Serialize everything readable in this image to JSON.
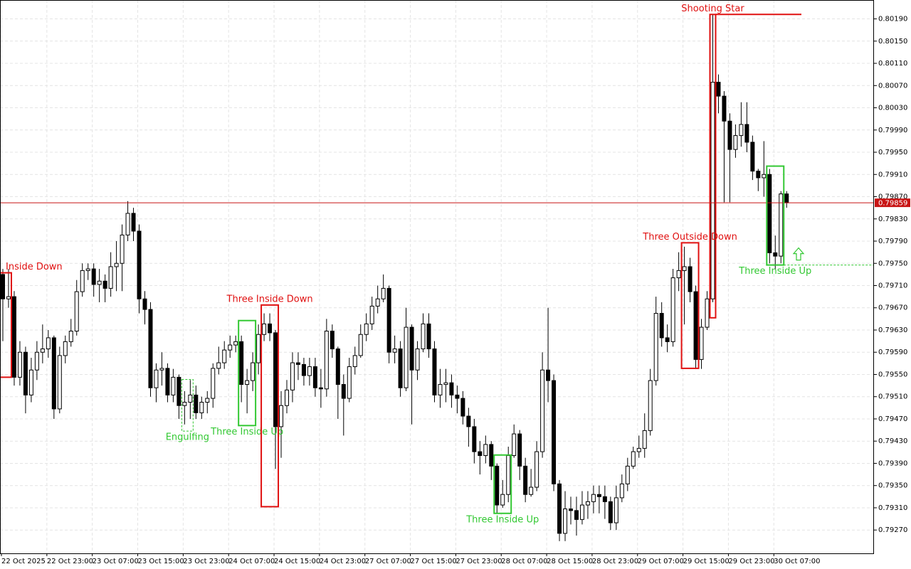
{
  "chart_data": {
    "type": "candlestick",
    "categories": [
      "22 Oct 2025",
      null,
      null,
      null,
      null,
      null,
      null,
      null,
      "22 Oct 23:00",
      null,
      null,
      null,
      null,
      null,
      null,
      null,
      "23 Oct 07:00",
      null,
      null,
      null,
      null,
      null,
      null,
      null,
      "23 Oct 15:00",
      null,
      null,
      null,
      null,
      null,
      null,
      null,
      "23 Oct 23:00",
      null,
      null,
      null,
      null,
      null,
      null,
      null,
      "24 Oct 07:00",
      null,
      null,
      null,
      null,
      null,
      null,
      null,
      "24 Oct 15:00",
      null,
      null,
      null,
      null,
      null,
      null,
      null,
      "24 Oct 23:00",
      null,
      null,
      null,
      null,
      null,
      null,
      null,
      "27 Oct 07:00",
      null,
      null,
      null,
      null,
      null,
      null,
      null,
      "27 Oct 15:00",
      null,
      null,
      null,
      null,
      null,
      null,
      null,
      "27 Oct 23:00",
      null,
      null,
      null,
      null,
      null,
      null,
      null,
      "28 Oct 07:00",
      null,
      null,
      null,
      null,
      null,
      null,
      null,
      "28 Oct 15:00",
      null,
      null,
      null,
      null,
      null,
      null,
      null,
      "28 Oct 23:00",
      null,
      null,
      null,
      null,
      null,
      null,
      null,
      "29 Oct 07:00",
      null,
      null,
      null,
      null,
      null,
      null,
      null,
      "29 Oct 15:00",
      null,
      null,
      null,
      null,
      null,
      null,
      null,
      "29 Oct 23:00",
      null,
      null,
      null,
      null,
      null,
      null,
      null,
      "30 Oct 07:00",
      null,
      null
    ],
    "open": [
      0.7973,
      0.79686,
      0.7969,
      0.79545,
      0.7959,
      0.79513,
      0.79558,
      0.7959,
      0.79596,
      0.79616,
      0.79488,
      0.79584,
      0.79609,
      0.79628,
      0.79699,
      0.79737,
      0.7974,
      0.79712,
      0.79718,
      0.79705,
      0.79744,
      0.7975,
      0.79801,
      0.7984,
      0.79808,
      0.79686,
      0.79667,
      0.79526,
      0.79558,
      0.79561,
      0.79513,
      0.79545,
      0.79494,
      0.795,
      0.79513,
      0.79481,
      0.795,
      0.79507,
      0.79561,
      0.79571,
      0.79594,
      0.79603,
      0.79609,
      0.79532,
      0.79539,
      0.79571,
      0.79622,
      0.79641,
      0.79625,
      0.79456,
      0.79494,
      0.79522,
      0.79571,
      0.79568,
      0.79548,
      0.79564,
      0.79526,
      0.79524,
      0.79628,
      0.79596,
      0.79532,
      0.79507,
      0.79564,
      0.79584,
      0.79622,
      0.79641,
      0.79673,
      0.79686,
      0.79705,
      0.7959,
      0.79596,
      0.79526,
      0.79635,
      0.79558,
      0.79596,
      0.79641,
      0.79596,
      0.79513,
      0.79532,
      0.79535,
      0.79513,
      0.79507,
      0.79475,
      0.79456,
      0.79411,
      0.79404,
      0.79424,
      0.79385,
      0.79315,
      0.79334,
      0.79404,
      0.79443,
      0.79385,
      0.79334,
      0.79347,
      0.79411,
      0.79558,
      0.79539,
      0.79353,
      0.79264,
      0.79308,
      0.79305,
      0.79289,
      0.79315,
      0.79321,
      0.79334,
      0.7933,
      0.79321,
      0.79283,
      0.79328,
      0.79353,
      0.79385,
      0.79411,
      0.79417,
      0.79449,
      0.79539,
      0.7966,
      0.79616,
      0.79609,
      0.79724,
      0.79737,
      0.79744,
      0.79699,
      0.79577,
      0.79635,
      0.79686,
      0.80076,
      0.80051,
      0.80006,
      0.79955,
      0.7998,
      0.8,
      0.79968,
      0.79916,
      0.79904,
      0.7991,
      0.79769,
      0.79763,
      0.79875
    ],
    "high": [
      0.7974,
      0.7974,
      0.797,
      0.7961,
      0.796,
      0.7958,
      0.7961,
      0.7964,
      0.7963,
      0.7962,
      0.796,
      0.7962,
      0.7965,
      0.7972,
      0.7975,
      0.7975,
      0.7975,
      0.7974,
      0.7973,
      0.7977,
      0.7979,
      0.7982,
      0.79862,
      0.7985,
      0.7982,
      0.797,
      0.7968,
      0.7957,
      0.7959,
      0.7957,
      0.7956,
      0.7955,
      0.7952,
      0.7954,
      0.7953,
      0.7951,
      0.7952,
      0.7957,
      0.796,
      0.7961,
      0.7962,
      0.7962,
      0.7962,
      0.7956,
      0.7959,
      0.7964,
      0.7966,
      0.7966,
      0.7963,
      0.7952,
      0.7954,
      0.7959,
      0.7959,
      0.7958,
      0.7958,
      0.7958,
      0.7956,
      0.7965,
      0.7964,
      0.796,
      0.7955,
      0.7958,
      0.796,
      0.7964,
      0.7966,
      0.7969,
      0.7971,
      0.7973,
      0.7971,
      0.7962,
      0.7961,
      0.7967,
      0.7964,
      0.7961,
      0.7966,
      0.7966,
      0.7961,
      0.7956,
      0.7956,
      0.7955,
      0.7953,
      0.7952,
      0.7949,
      0.7947,
      0.7943,
      0.7944,
      0.7943,
      0.7939,
      0.7936,
      0.7942,
      0.7946,
      0.7945,
      0.794,
      0.7938,
      0.7943,
      0.7959,
      0.7967,
      0.7955,
      0.7936,
      0.7934,
      0.7933,
      0.7933,
      0.7934,
      0.7934,
      0.7935,
      0.7935,
      0.7935,
      0.7933,
      0.7935,
      0.7937,
      0.794,
      0.7942,
      0.7944,
      0.7948,
      0.7956,
      0.7969,
      0.7968,
      0.7964,
      0.7974,
      0.7977,
      0.7978,
      0.7976,
      0.7971,
      0.7965,
      0.797,
      0.80198,
      0.8009,
      0.8006,
      0.8002,
      0.8,
      0.8004,
      0.8004,
      0.7998,
      0.7992,
      0.7997,
      0.7992,
      0.798,
      0.7988,
      0.7988
    ],
    "low": [
      0.7961,
      0.7967,
      0.7953,
      0.7953,
      0.7948,
      0.795,
      0.7954,
      0.7957,
      0.7958,
      0.7947,
      0.7948,
      0.7957,
      0.796,
      0.7962,
      0.7969,
      0.7972,
      0.7969,
      0.7968,
      0.7968,
      0.7969,
      0.797,
      0.797,
      0.7979,
      0.7979,
      0.7966,
      0.7964,
      0.7951,
      0.795,
      0.7953,
      0.795,
      0.795,
      0.7947,
      0.7946,
      0.7947,
      0.7947,
      0.7947,
      0.7948,
      0.7949,
      0.7955,
      0.7956,
      0.7958,
      0.7959,
      0.795,
      0.7948,
      0.7952,
      0.7955,
      0.7961,
      0.7961,
      0.7938,
      0.794,
      0.7948,
      0.795,
      0.7954,
      0.7953,
      0.7953,
      0.7951,
      0.7949,
      0.7951,
      0.7958,
      0.7947,
      0.7944,
      0.795,
      0.7955,
      0.7958,
      0.7961,
      0.7963,
      0.7966,
      0.7968,
      0.7957,
      0.7957,
      0.7951,
      0.7952,
      0.7946,
      0.7954,
      0.7959,
      0.7958,
      0.795,
      0.7949,
      0.795,
      0.7949,
      0.7948,
      0.7946,
      0.7942,
      0.7939,
      0.7937,
      0.7939,
      0.7936,
      0.793,
      0.7931,
      0.7932,
      0.794,
      0.7936,
      0.7932,
      0.7933,
      0.7934,
      0.794,
      0.795,
      0.7934,
      0.7925,
      0.7925,
      0.7928,
      0.7926,
      0.7928,
      0.7929,
      0.793,
      0.793,
      0.7929,
      0.7927,
      0.7927,
      0.7932,
      0.7934,
      0.7938,
      0.794,
      0.794,
      0.7944,
      0.7953,
      0.796,
      0.7959,
      0.796,
      0.797,
      0.7964,
      0.7968,
      0.7956,
      0.7956,
      0.7963,
      0.7968,
      0.8002,
      0.7986,
      0.7986,
      0.7994,
      0.7996,
      0.7995,
      0.799,
      0.7988,
      0.7987,
      0.7975,
      0.7974,
      0.7975,
      0.7985
    ],
    "close": [
      0.79686,
      0.7969,
      0.79545,
      0.7959,
      0.79513,
      0.79558,
      0.7959,
      0.79596,
      0.79616,
      0.79488,
      0.79584,
      0.79609,
      0.79628,
      0.79699,
      0.79737,
      0.7974,
      0.79712,
      0.79718,
      0.79705,
      0.79744,
      0.7975,
      0.79801,
      0.7984,
      0.79808,
      0.79686,
      0.79667,
      0.79526,
      0.79558,
      0.79561,
      0.79513,
      0.79545,
      0.79494,
      0.795,
      0.79513,
      0.79481,
      0.795,
      0.79507,
      0.79561,
      0.79571,
      0.79594,
      0.79603,
      0.79609,
      0.79532,
      0.79539,
      0.79571,
      0.79622,
      0.79641,
      0.79625,
      0.79456,
      0.79494,
      0.79522,
      0.79571,
      0.79568,
      0.79548,
      0.79564,
      0.79526,
      0.79524,
      0.79628,
      0.79596,
      0.79532,
      0.79507,
      0.79564,
      0.79584,
      0.79622,
      0.79641,
      0.79673,
      0.79686,
      0.79705,
      0.7959,
      0.79596,
      0.79526,
      0.79635,
      0.79558,
      0.79596,
      0.79641,
      0.79596,
      0.79513,
      0.79532,
      0.79535,
      0.79513,
      0.79507,
      0.79475,
      0.79456,
      0.79411,
      0.79404,
      0.79424,
      0.79385,
      0.79315,
      0.79334,
      0.79404,
      0.79443,
      0.79385,
      0.79334,
      0.79347,
      0.79411,
      0.79558,
      0.79539,
      0.79353,
      0.79264,
      0.79308,
      0.79305,
      0.79289,
      0.79315,
      0.79321,
      0.79334,
      0.7933,
      0.79321,
      0.79283,
      0.79328,
      0.79353,
      0.79385,
      0.79411,
      0.79417,
      0.79449,
      0.79539,
      0.7966,
      0.79616,
      0.79609,
      0.79724,
      0.79737,
      0.79744,
      0.79699,
      0.79577,
      0.79635,
      0.79686,
      0.80076,
      0.80051,
      0.80006,
      0.79955,
      0.7998,
      0.8,
      0.79968,
      0.79916,
      0.79904,
      0.7991,
      0.79769,
      0.79763,
      0.79875,
      0.79859
    ],
    "ylim": [
      0.79228,
      0.80224
    ],
    "yticks": [
      {
        "value": 0.7927,
        "label": "0.79270"
      },
      {
        "value": 0.7931,
        "label": "0.79310"
      },
      {
        "value": 0.7935,
        "label": "0.79350"
      },
      {
        "value": 0.7939,
        "label": "0.79390"
      },
      {
        "value": 0.7943,
        "label": "0.79430"
      },
      {
        "value": 0.7947,
        "label": "0.79470"
      },
      {
        "value": 0.7951,
        "label": "0.79510"
      },
      {
        "value": 0.7955,
        "label": "0.79550"
      },
      {
        "value": 0.7959,
        "label": "0.79590"
      },
      {
        "value": 0.7963,
        "label": "0.79630"
      },
      {
        "value": 0.7967,
        "label": "0.79670"
      },
      {
        "value": 0.7971,
        "label": "0.79710"
      },
      {
        "value": 0.7975,
        "label": "0.79750"
      },
      {
        "value": 0.7979,
        "label": "0.79790"
      },
      {
        "value": 0.7983,
        "label": "0.79830"
      },
      {
        "value": 0.7987,
        "label": "0.79870"
      },
      {
        "value": 0.7991,
        "label": "0.79910"
      },
      {
        "value": 0.7995,
        "label": "0.79950"
      },
      {
        "value": 0.7999,
        "label": "0.79990"
      },
      {
        "value": 0.8003,
        "label": "0.80030"
      },
      {
        "value": 0.8007,
        "label": "0.80070"
      },
      {
        "value": 0.8011,
        "label": "0.80110"
      },
      {
        "value": 0.8015,
        "label": "0.80150"
      },
      {
        "value": 0.8019,
        "label": "0.80190"
      }
    ],
    "grid": true,
    "current_price": {
      "value": 0.79859,
      "label": "0.79859",
      "color": "#c81414"
    },
    "patterns": [
      {
        "label": "Inside Down",
        "color": "#e01010",
        "start": 0,
        "end": 1,
        "top": 0.79733,
        "bottom": 0.79545
      },
      {
        "label": "Engulfing",
        "color": "#32c832",
        "start": 32,
        "end": 33,
        "top": 0.79541,
        "bottom": 0.79448,
        "dashed": true
      },
      {
        "label": "Three Inside Up",
        "color": "#32c832",
        "start": 42,
        "end": 44,
        "top": 0.79647,
        "bottom": 0.79458
      },
      {
        "label": "Three Inside Down",
        "color": "#e01010",
        "start": 46,
        "end": 48,
        "top": 0.79675,
        "bottom": 0.79312
      },
      {
        "label": "Three Inside Up",
        "color": "#32c832",
        "start": 87,
        "end": 89,
        "top": 0.79405,
        "bottom": 0.793
      },
      {
        "label": "Three Outside Down",
        "color": "#e01010",
        "start": 120,
        "end": 122,
        "top": 0.79787,
        "bottom": 0.79561
      },
      {
        "label": "Shooting Star",
        "color": "#e01010",
        "start": 125,
        "end": 125,
        "top": 0.80198,
        "bottom": 0.79652
      },
      {
        "label": "Three Inside Up",
        "color": "#32c832",
        "start": 135,
        "end": 137,
        "top": 0.79925,
        "bottom": 0.79747
      }
    ]
  }
}
